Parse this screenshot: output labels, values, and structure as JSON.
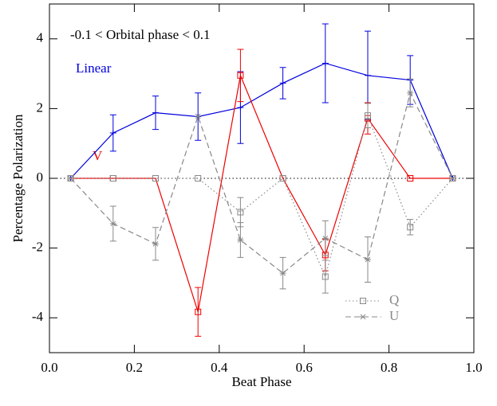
{
  "chart_data": {
    "type": "line",
    "x_label": "Beat Phase",
    "y_label": "Percentage Polarization",
    "annotation": "-0.1 < Orbital phase < 0.1",
    "x": [
      0.05,
      0.15,
      0.25,
      0.35,
      0.45,
      0.55,
      0.65,
      0.75,
      0.85,
      0.95
    ],
    "series": [
      {
        "name": "Linear",
        "color": "#0000dd",
        "dash": "solid",
        "marker": "tick",
        "legend": false,
        "values": [
          0,
          1.3,
          1.88,
          1.77,
          2.03,
          2.73,
          3.3,
          2.95,
          2.82,
          0
        ],
        "errors": [
          null,
          0.52,
          0.48,
          0.68,
          1.03,
          0.45,
          1.13,
          1.27,
          0.7,
          null
        ]
      },
      {
        "name": "V",
        "color": "#ee0000",
        "dash": "solid",
        "marker": "square",
        "legend": false,
        "values": [
          0,
          0,
          0,
          -3.83,
          2.95,
          0,
          -2.2,
          1.72,
          0,
          0
        ],
        "errors": [
          null,
          null,
          null,
          0.7,
          0.75,
          null,
          0.45,
          0.45,
          null,
          null
        ]
      },
      {
        "name": "Q",
        "color": "#888888",
        "dash": "dotted",
        "marker": "square",
        "legend": true,
        "values": [
          0,
          0,
          0,
          0,
          -0.97,
          0,
          -2.82,
          1.8,
          -1.4,
          0
        ],
        "errors": [
          null,
          null,
          null,
          null,
          0.42,
          null,
          0.47,
          0.35,
          0.22,
          null
        ]
      },
      {
        "name": "U",
        "color": "#888888",
        "dash": "dashed",
        "marker": "asterisk",
        "legend": true,
        "values": [
          0,
          -1.3,
          -1.88,
          1.78,
          -1.77,
          -2.72,
          -1.72,
          -2.33,
          2.45,
          0
        ],
        "errors": [
          null,
          0.5,
          0.47,
          null,
          0.5,
          0.45,
          0.5,
          0.65,
          0.4,
          null
        ]
      }
    ],
    "hline": 0,
    "xlim": [
      0,
      1
    ],
    "ylim": [
      -5,
      5
    ],
    "xticks": [
      {
        "value": 0,
        "label": "0.0"
      },
      0.2,
      0.4,
      0.6,
      0.8,
      {
        "value": 1,
        "label": "1.0"
      }
    ],
    "yticks": [
      -4,
      -2,
      0,
      2,
      4
    ]
  }
}
